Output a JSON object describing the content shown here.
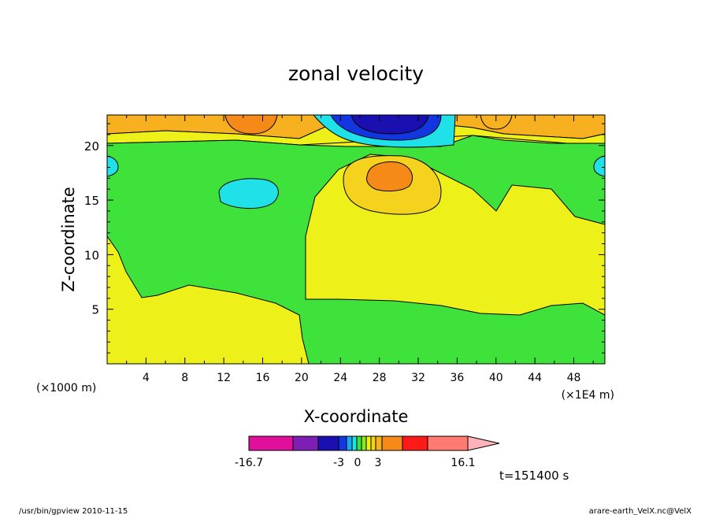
{
  "chart_data": {
    "type": "contour",
    "title": "zonal velocity",
    "xlabel": "X-coordinate",
    "ylabel": "Z-coordinate",
    "xunit_left": "(×1000 m)",
    "xunit_right": "(×1E4 m)",
    "xlim": [
      0,
      51.2
    ],
    "ylim": [
      0,
      22.8
    ],
    "xticks": [
      "4",
      "8",
      "12",
      "16",
      "20",
      "24",
      "28",
      "32",
      "36",
      "40",
      "44",
      "48"
    ],
    "yticks": [
      "5",
      "10",
      "15",
      "20"
    ],
    "colorbar": {
      "colors": [
        "#e0109a",
        "#7d1fb5",
        "#1a10b0",
        "#1236e0",
        "#1aa8f2",
        "#20e0e8",
        "#3ee23a",
        "#86e826",
        "#eef01a",
        "#f4d21e",
        "#f6b020",
        "#f58a18",
        "#ff1a1a",
        "#ff7b72",
        "#ffb3b8"
      ],
      "labels": [
        "-16.7",
        "-3",
        "0",
        "3",
        "16.1"
      ]
    },
    "annotation": "t=151400 s"
  },
  "footer": {
    "left": "/usr/bin/gpview   2010-11-15",
    "right": "arare-earth_VelX.nc@VelX"
  }
}
